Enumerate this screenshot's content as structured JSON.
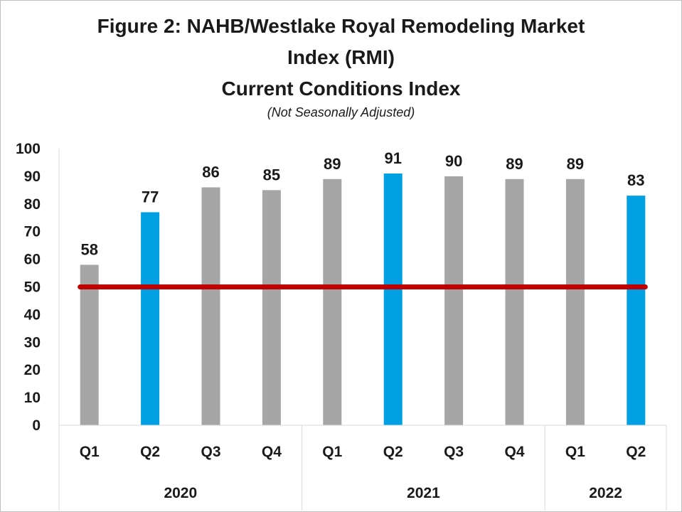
{
  "chart_data": {
    "type": "bar",
    "title_line1": "Figure 2:  NAHB/Westlake  Royal Remodeling  Market",
    "title_line2": "Index (RMI)",
    "subtitle": "Current Conditions Index",
    "note": "(Not Seasonally Adjusted)",
    "categories": [
      "Q1",
      "Q2",
      "Q3",
      "Q4",
      "Q1",
      "Q2",
      "Q3",
      "Q4",
      "Q1",
      "Q2"
    ],
    "years": [
      {
        "label": "2020",
        "count": 4
      },
      {
        "label": "2021",
        "count": 4
      },
      {
        "label": "2022",
        "count": 2
      }
    ],
    "values": [
      58,
      77,
      86,
      85,
      89,
      91,
      90,
      89,
      89,
      83
    ],
    "highlight": [
      false,
      true,
      false,
      false,
      false,
      true,
      false,
      false,
      false,
      true
    ],
    "reference_line": 50,
    "ylim": [
      0,
      100
    ],
    "yticks": [
      0,
      10,
      20,
      30,
      40,
      50,
      60,
      70,
      80,
      90,
      100
    ],
    "colors": {
      "bar": "#a6a6a6",
      "highlight": "#00a0e3",
      "reference": "#c00000",
      "grid": "#d9d9d9"
    }
  }
}
